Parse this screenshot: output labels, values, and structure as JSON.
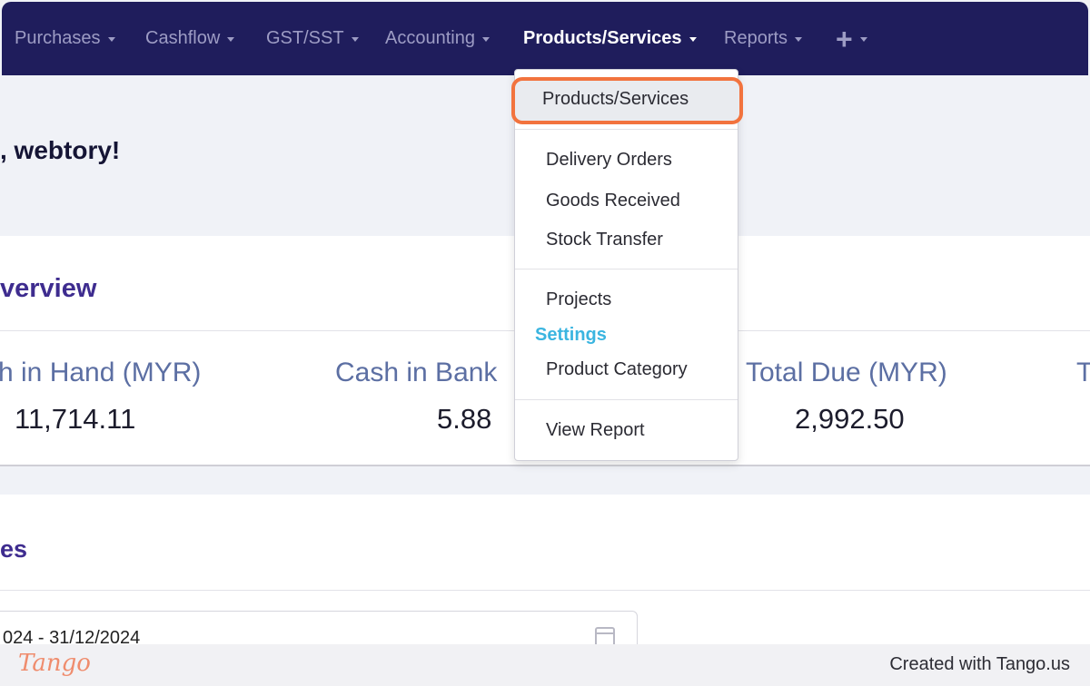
{
  "nav": {
    "items": [
      {
        "label": "Purchases"
      },
      {
        "label": "Cashflow"
      },
      {
        "label": "GST/SST"
      },
      {
        "label": "Accounting"
      },
      {
        "label": "Products/Services"
      },
      {
        "label": "Reports"
      }
    ],
    "active": "Products/Services",
    "plus_symbol": "+"
  },
  "welcome": {
    "greeting": ", webtory!"
  },
  "overview": {
    "title": "verview",
    "stats": [
      {
        "label": "h in Hand (MYR)",
        "value": "11,714.11"
      },
      {
        "label": "Cash in Bank",
        "value": "5.88"
      },
      {
        "label": "Total Due (MYR)",
        "value": "2,992.50"
      },
      {
        "label": "T",
        "value": ""
      }
    ]
  },
  "sales": {
    "title": "es",
    "date_range": "024 - 31/12/2024"
  },
  "dropdown": {
    "highlighted_item": "Products/Services",
    "group_items": [
      "Delivery Orders",
      "Goods Received",
      "Stock Transfer"
    ],
    "projects_item": "Projects",
    "settings_header": "Settings",
    "settings_item": "Product Category",
    "report_item": "View Report"
  },
  "footer": {
    "logo_text": "Tango",
    "credit": "Created with Tango.us"
  },
  "colors": {
    "nav_bg": "#1f1d5c",
    "highlight_border": "#f2733e",
    "settings_header": "#3bb5e0",
    "section_title": "#3e2c8f",
    "stat_label": "#5c6fa3"
  }
}
